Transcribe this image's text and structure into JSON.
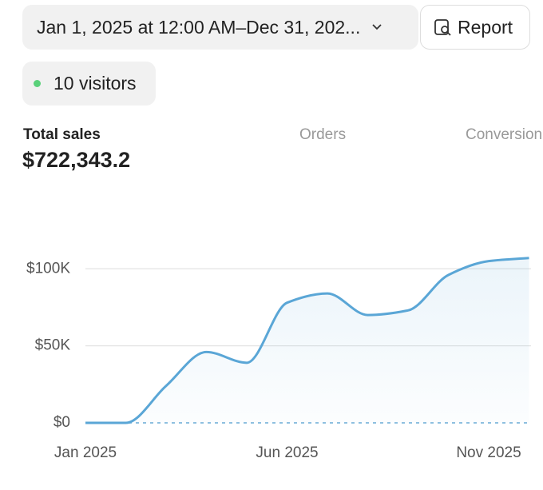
{
  "header": {
    "date_range": "Jan 1, 2025 at 12:00 AM–Dec 31, 202...",
    "report": "Report",
    "visitors": "10 visitors"
  },
  "metrics": [
    {
      "label": "Total sales",
      "value": "$722,343.2"
    },
    {
      "label": "Orders"
    },
    {
      "label": "Conversion"
    }
  ],
  "chart_data": {
    "type": "line",
    "categories": [
      "Jan 2025",
      null,
      null,
      null,
      null,
      "Jun 2025",
      null,
      null,
      null,
      null,
      "Nov 2025",
      null
    ],
    "series": [
      {
        "name": "Total sales",
        "color": "#5aa6d6",
        "values": [
          0,
          0,
          24000,
          46000,
          39000,
          78000,
          84000,
          70000,
          73000,
          96000,
          105000,
          107000
        ]
      }
    ],
    "ylim": [
      0,
      110000
    ],
    "yticks": [
      {
        "value": 0,
        "label": "$0"
      },
      {
        "value": 50000,
        "label": "$50K"
      },
      {
        "value": 100000,
        "label": "$100K"
      }
    ],
    "grid": true
  }
}
